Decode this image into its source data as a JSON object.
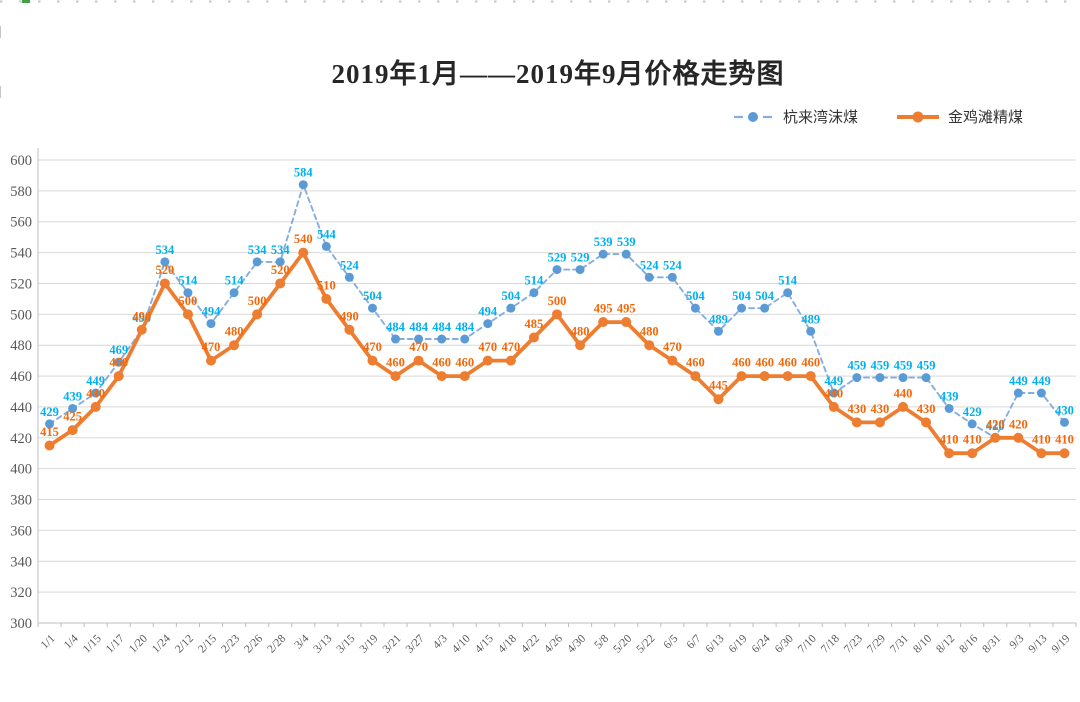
{
  "title": "2019年1月——2019年9月价格走势图",
  "legend": {
    "items": [
      {
        "label": "杭来湾沫煤"
      },
      {
        "label": "金鸡滩精煤"
      }
    ]
  },
  "chart_data": {
    "type": "line",
    "title": "2019年1月——2019年9月价格走势图",
    "categories": [
      "1/1",
      "1/4",
      "1/15",
      "1/17",
      "1/20",
      "1/24",
      "2/12",
      "2/15",
      "2/23",
      "2/26",
      "2/28",
      "3/4",
      "3/13",
      "3/15",
      "3/19",
      "3/21",
      "3/27",
      "4/3",
      "4/10",
      "4/15",
      "4/18",
      "4/22",
      "4/26",
      "4/30",
      "5/8",
      "5/20",
      "5/22",
      "6/5",
      "6/7",
      "6/13",
      "6/19",
      "6/24",
      "6/30",
      "7/10",
      "7/18",
      "7/23",
      "7/29",
      "7/31",
      "8/10",
      "8/12",
      "8/16",
      "8/31",
      "9/3",
      "9/13",
      "9/19"
    ],
    "series": [
      {
        "name": "杭来湾沫煤",
        "style": "dashed",
        "line_color": "#85AEDF",
        "marker_color": "#5B9BD5",
        "label_color": "#00B0F0",
        "values": [
          429,
          439,
          449,
          469,
          490,
          534,
          514,
          494,
          514,
          534,
          534,
          584,
          544,
          524,
          504,
          484,
          484,
          484,
          484,
          494,
          504,
          514,
          529,
          529,
          539,
          539,
          524,
          524,
          504,
          489,
          504,
          504,
          514,
          489,
          449,
          459,
          459,
          459,
          459,
          439,
          429,
          420,
          449,
          449,
          430
        ]
      },
      {
        "name": "金鸡滩精煤",
        "style": "solid",
        "line_color": "#ED7D31",
        "marker_color": "#ED7D31",
        "label_color": "#F2680A",
        "values": [
          415,
          425,
          440,
          460,
          490,
          520,
          500,
          470,
          480,
          500,
          520,
          540,
          510,
          490,
          470,
          460,
          470,
          460,
          460,
          470,
          470,
          485,
          500,
          480,
          495,
          495,
          480,
          470,
          460,
          445,
          460,
          460,
          460,
          460,
          440,
          430,
          430,
          440,
          430,
          410,
          410,
          420,
          420,
          410,
          410
        ]
      }
    ],
    "ylim": [
      300,
      600
    ],
    "ytick_step": 20,
    "yticks": [
      300,
      320,
      340,
      360,
      380,
      400,
      420,
      440,
      460,
      480,
      500,
      520,
      540,
      560,
      580,
      600
    ],
    "grid": true,
    "data_labels": true,
    "legend_position": "top-right",
    "colors": {
      "grid_color": "#D9D9D9",
      "axis_color": "#BFBFBF",
      "tick_label_color": "#595959",
      "top_artifact_gray": "#C6C6C6",
      "top_artifact_green": "#43A047"
    }
  }
}
